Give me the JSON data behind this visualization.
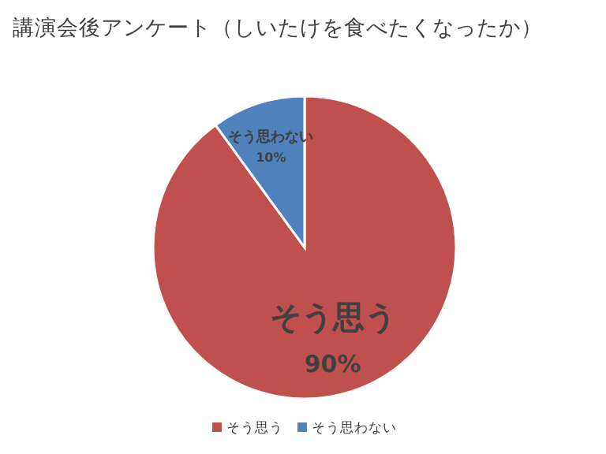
{
  "chart_data": {
    "type": "pie",
    "title": "講演会後アンケート（しいたけを食べたくなったか）",
    "categories": [
      "そう思う",
      "そう思わない"
    ],
    "values": [
      90,
      10
    ],
    "colors": [
      "#c0504d",
      "#4f81bd"
    ],
    "value_labels": [
      "90%",
      "10%"
    ],
    "legend": "bottom"
  }
}
